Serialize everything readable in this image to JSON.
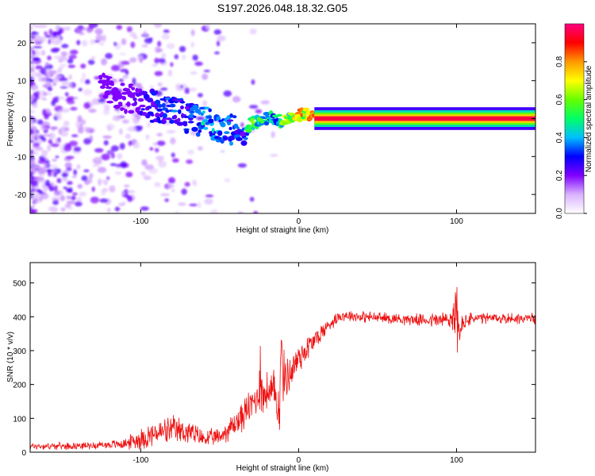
{
  "title": "S197.2026.048.18.32.G05",
  "chart_data": [
    {
      "type": "heatmap",
      "xlabel": "Height of straight line (km)",
      "ylabel": "Frequency (Hz)",
      "xlim": [
        -170,
        150
      ],
      "ylim": [
        -25,
        25
      ],
      "xticks": [
        -100,
        0,
        100
      ],
      "yticks": [
        -20,
        -10,
        0,
        10,
        20
      ],
      "colorbar": {
        "label": "Normalized spectral amplitude",
        "range": [
          0,
          1
        ],
        "ticks": [
          0.0,
          0.2,
          0.4,
          0.6,
          0.8
        ],
        "colors": [
          "#ffffff",
          "#d9b3ff",
          "#8000ff",
          "#0000ff",
          "#00bfff",
          "#00ff66",
          "#66ff00",
          "#ffff00",
          "#ff9900",
          "#ff0000",
          "#ff0080"
        ]
      },
      "ridge": {
        "x": [
          -120,
          -110,
          -100,
          -90,
          -80,
          -70,
          -60,
          -50,
          -40,
          -35,
          -30,
          -25,
          -20,
          -15,
          -10,
          -5,
          0,
          5,
          10,
          50,
          100,
          150
        ],
        "frequency": [
          8,
          6,
          4,
          3,
          2,
          0,
          -1,
          -2,
          -3,
          -5,
          -1,
          -1,
          0,
          0,
          -1,
          1,
          1,
          1,
          0,
          0,
          0,
          0
        ],
        "amplitude": [
          0.1,
          0.15,
          0.25,
          0.3,
          0.35,
          0.3,
          0.45,
          0.4,
          0.35,
          0.3,
          0.6,
          0.55,
          0.5,
          0.45,
          0.6,
          0.7,
          0.85,
          0.75,
          0.95,
          0.95,
          0.95,
          0.95
        ]
      }
    },
    {
      "type": "line",
      "xlabel": "Height of straight line (km)",
      "ylabel": "SNR (10 * v/v)",
      "xlim": [
        -170,
        150
      ],
      "ylim": [
        0,
        560
      ],
      "xticks": [
        -100,
        0,
        100
      ],
      "yticks": [
        0,
        100,
        200,
        300,
        400,
        500
      ],
      "series": [
        {
          "name": "SNR",
          "color": "#ee1111",
          "x": [
            -170,
            -150,
            -130,
            -110,
            -100,
            -90,
            -80,
            -70,
            -60,
            -50,
            -40,
            -35,
            -30,
            -25,
            -24,
            -23,
            -20,
            -15,
            -12,
            -11,
            -10,
            -5,
            0,
            10,
            20,
            25,
            30,
            40,
            60,
            80,
            95,
            100,
            102,
            103,
            110,
            130,
            150
          ],
          "mean": [
            18,
            18,
            20,
            25,
            40,
            55,
            65,
            60,
            40,
            45,
            85,
            110,
            140,
            170,
            300,
            160,
            180,
            170,
            140,
            340,
            220,
            235,
            280,
            330,
            380,
            400,
            405,
            400,
            395,
            390,
            390,
            410,
            320,
            380,
            395,
            395,
            395
          ],
          "spread": [
            12,
            12,
            12,
            18,
            40,
            45,
            50,
            45,
            30,
            30,
            50,
            55,
            60,
            60,
            255,
            60,
            70,
            90,
            120,
            25,
            90,
            70,
            60,
            40,
            25,
            20,
            20,
            20,
            20,
            20,
            40,
            110,
            90,
            40,
            20,
            20,
            20
          ]
        }
      ]
    }
  ]
}
